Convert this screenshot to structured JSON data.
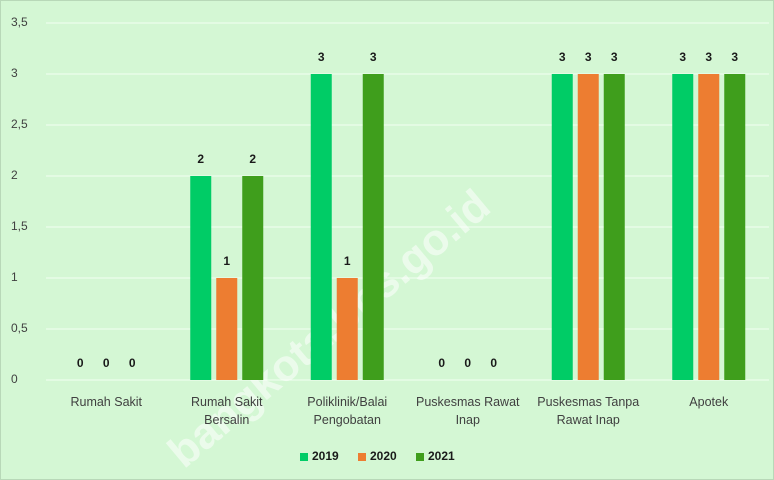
{
  "chart_data": {
    "type": "bar",
    "categories": [
      "Rumah Sakit",
      "Rumah Sakit Bersalin",
      "Poliklinik/Balai Pengobatan",
      "Puskesmas Rawat Inap",
      "Puskesmas Tanpa Rawat Inap",
      "Apotek"
    ],
    "series": [
      {
        "name": "2019",
        "color": "#00cc66",
        "values": [
          0,
          2,
          3,
          0,
          3,
          3
        ]
      },
      {
        "name": "2020",
        "color": "#ed7d31",
        "values": [
          0,
          1,
          1,
          0,
          3,
          3
        ]
      },
      {
        "name": "2021",
        "color": "#3f9e1c",
        "values": [
          0,
          2,
          3,
          0,
          3,
          3
        ]
      }
    ],
    "ylim": [
      0,
      3.5
    ],
    "yticks": [
      0,
      {
        "value": 0.5,
        "label": "0,5"
      },
      1,
      {
        "value": 1.5,
        "label": "1,5"
      },
      2,
      {
        "value": 2.5,
        "label": "2,5"
      },
      3,
      {
        "value": 3.5,
        "label": "3,5"
      }
    ],
    "grid": true,
    "legend": "bottom",
    "watermark": "bangkota.bps.go.id"
  }
}
